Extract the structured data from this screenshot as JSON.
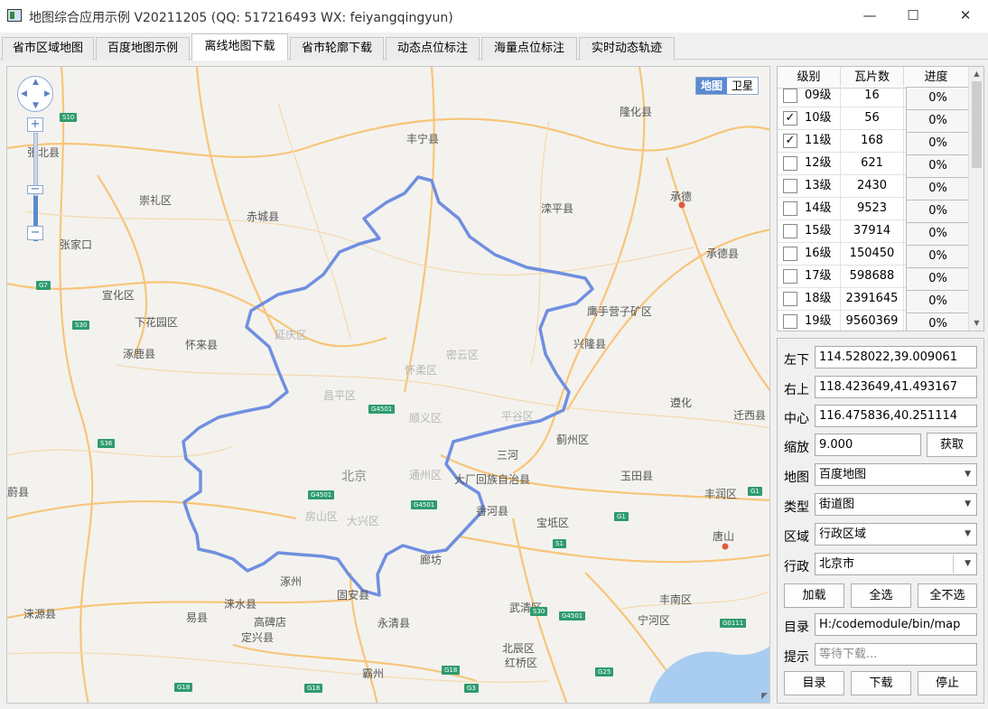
{
  "window": {
    "title": "地图综合应用示例 V20211205 (QQ: 517216493 WX: feiyangqingyun)",
    "minimize": "—",
    "maximize": "☐",
    "close": "✕"
  },
  "tabs": [
    {
      "label": "省市区域地图"
    },
    {
      "label": "百度地图示例"
    },
    {
      "label": "离线地图下载",
      "active": true
    },
    {
      "label": "省市轮廓下载"
    },
    {
      "label": "动态点位标注"
    },
    {
      "label": "海量点位标注"
    },
    {
      "label": "实时动态轨迹"
    }
  ],
  "map": {
    "type_switch": {
      "map": "地图",
      "satellite": "卫星"
    },
    "zoom_in": "+",
    "zoom_out": "−",
    "zoom_level_fraction": 0.45,
    "boundary_color": "#6f8fe0",
    "labels": {
      "fengning": "丰宁县",
      "longhua": "隆化县",
      "zhangbei": "张北县",
      "chongli": "崇礼区",
      "chicheng": "赤城县",
      "luanping": "滦平县",
      "chengde": "承德",
      "zhangjiakou": "张家口",
      "chengdexian": "承德县",
      "xuanhua": "宣化区",
      "yingshouyingzi": "鹰手营子矿区",
      "xiahuayuan": "下花园区",
      "huailai": "怀来县",
      "xinglong": "兴隆县",
      "zhuolu": "涿鹿县",
      "yanqing": "延庆区",
      "miyun": "密云区",
      "huairou": "怀柔区",
      "changping": "昌平区",
      "zunhua": "遵化",
      "qianxi": "迁西县",
      "shunyi": "顺义区",
      "pinggu": "平谷区",
      "jizhou": "蓟州区",
      "sanhe": "三河",
      "beijing": "北京",
      "tongzhou": "通州区",
      "dachang": "大厂回族自治县",
      "yutian": "玉田县",
      "weixian": "蔚县",
      "fengrun": "丰润区",
      "fangshan": "房山区",
      "daxing": "大兴区",
      "xianghe": "香河县",
      "baodi": "宝坻区",
      "tangshan": "唐山",
      "zhuozhou": "涿州",
      "langfang": "廊坊",
      "laishui": "涞水县",
      "guan": "固安县",
      "wuqing": "武清区",
      "fengnan": "丰南区",
      "laiyuan": "涞源县",
      "gaobeidian": "高碑店",
      "yixian": "易县",
      "yongqing": "永清县",
      "ninghe": "宁河区",
      "dingxing": "定兴县",
      "beichen": "北辰区",
      "hongqiao": "红桥区",
      "bazhou": "霸州"
    },
    "road_shields": {
      "s10": "S10",
      "g7": "G7",
      "s30": "S30",
      "s36": "S36",
      "g4501a": "G4501",
      "g4501b": "G4501",
      "g4501c": "G4501",
      "g1": "G1",
      "s1": "S1",
      "s30b": "S30",
      "g4501d": "G4501",
      "g0111": "G0111",
      "g18a": "G18",
      "g18b": "G18",
      "g18c": "G18",
      "g3": "G3",
      "g25": "G25",
      "g1b": "G1"
    }
  },
  "levels": {
    "headers": {
      "level": "级别",
      "tiles": "瓦片数",
      "progress": "进度"
    },
    "rows": [
      {
        "level": "09级",
        "tiles": "16",
        "progress": "0%",
        "checked": ""
      },
      {
        "level": "10级",
        "tiles": "56",
        "progress": "0%",
        "checked": "✓"
      },
      {
        "level": "11级",
        "tiles": "168",
        "progress": "0%",
        "checked": "✓"
      },
      {
        "level": "12级",
        "tiles": "621",
        "progress": "0%",
        "checked": ""
      },
      {
        "level": "13级",
        "tiles": "2430",
        "progress": "0%",
        "checked": ""
      },
      {
        "level": "14级",
        "tiles": "9523",
        "progress": "0%",
        "checked": ""
      },
      {
        "level": "15级",
        "tiles": "37914",
        "progress": "0%",
        "checked": ""
      },
      {
        "level": "16级",
        "tiles": "150450",
        "progress": "0%",
        "checked": ""
      },
      {
        "level": "17级",
        "tiles": "598688",
        "progress": "0%",
        "checked": ""
      },
      {
        "level": "18级",
        "tiles": "2391645",
        "progress": "0%",
        "checked": ""
      },
      {
        "level": "19级",
        "tiles": "9560369",
        "progress": "0%",
        "checked": ""
      }
    ]
  },
  "form": {
    "bottom_left": {
      "label": "左下",
      "value": "114.528022,39.009061"
    },
    "top_right": {
      "label": "右上",
      "value": "118.423649,41.493167"
    },
    "center": {
      "label": "中心",
      "value": "116.475836,40.251114"
    },
    "zoom": {
      "label": "缩放",
      "value": "9.000",
      "button": "获取"
    },
    "map_source": {
      "label": "地图",
      "value": "百度地图"
    },
    "map_type": {
      "label": "类型",
      "value": "街道图"
    },
    "area": {
      "label": "区域",
      "value": "行政区域"
    },
    "district": {
      "label": "行政",
      "value": "北京市"
    },
    "load_button": "加载",
    "select_all_button": "全选",
    "select_none_button": "全不选",
    "directory": {
      "label": "目录",
      "value": "H:/codemodule/bin/map"
    },
    "hint": {
      "label": "提示",
      "placeholder": "等待下载..."
    },
    "dir_button": "目录",
    "download_button": "下载",
    "stop_button": "停止"
  }
}
